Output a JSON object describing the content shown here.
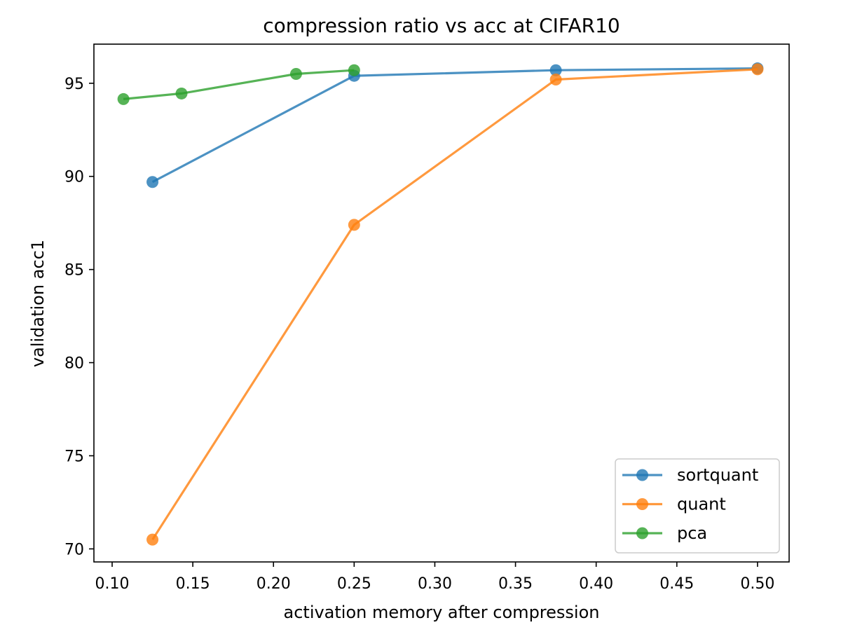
{
  "chart_data": {
    "type": "line",
    "title": "compression ratio vs acc at CIFAR10",
    "xlabel": "activation memory after compression",
    "ylabel": "validation acc1",
    "xlim": [
      0.0887,
      0.5196
    ],
    "ylim": [
      69.3,
      97.1
    ],
    "x_ticks": [
      0.1,
      0.15,
      0.2,
      0.25,
      0.3,
      0.35,
      0.4,
      0.45,
      0.5
    ],
    "x_tick_labels": [
      "0.10",
      "0.15",
      "0.20",
      "0.25",
      "0.30",
      "0.35",
      "0.40",
      "0.45",
      "0.50"
    ],
    "y_ticks": [
      70,
      75,
      80,
      85,
      90,
      95
    ],
    "y_tick_labels": [
      "70",
      "75",
      "80",
      "85",
      "90",
      "95"
    ],
    "grid": false,
    "legend_position": "lower-right",
    "series": [
      {
        "name": "sortquant",
        "color": "#1f77b4",
        "x": [
          0.125,
          0.25,
          0.375,
          0.5
        ],
        "y": [
          89.7,
          95.4,
          95.7,
          95.8
        ]
      },
      {
        "name": "quant",
        "color": "#ff7f0e",
        "x": [
          0.125,
          0.25,
          0.375,
          0.5
        ],
        "y": [
          70.5,
          87.4,
          95.2,
          95.75
        ]
      },
      {
        "name": "pca",
        "color": "#2ca02c",
        "x": [
          0.107,
          0.143,
          0.214,
          0.25
        ],
        "y": [
          94.15,
          94.45,
          95.5,
          95.7
        ]
      }
    ]
  }
}
